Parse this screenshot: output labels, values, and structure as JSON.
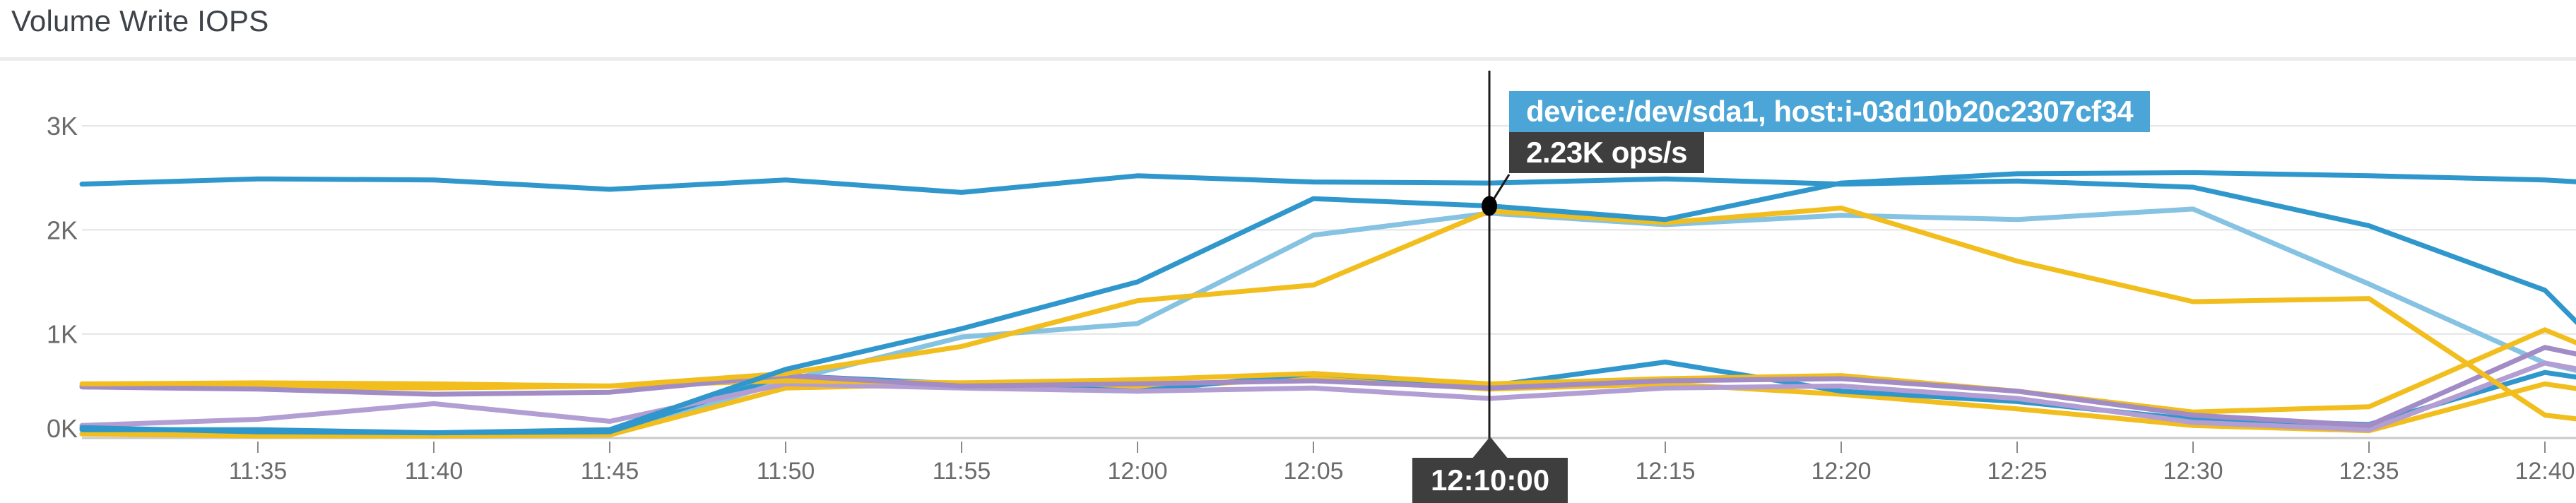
{
  "page": {
    "title": "Volume Write IOPS"
  },
  "tooltip": {
    "header": "device:/dev/sda1, host:i-03d10b20c2307cf34",
    "value": "2.23K ops/s",
    "time": "12:10:00",
    "header_bg": "#4BA5D6",
    "box_bg": "#3E3E3E"
  },
  "colors": {
    "blue": "#2F97CC",
    "light_blue": "#86C2E2",
    "gold": "#F1BE1E",
    "purple": "#A18CC6",
    "purple_light": "#B29ED3",
    "grid": "#e4e4e4",
    "axis_line": "#c9c9c9",
    "tick": "#8a8a8a",
    "crosshair": "#1a1a1a"
  },
  "chart_data": {
    "type": "line",
    "title": "Volume Write IOPS",
    "unit": "ops/s",
    "grid": true,
    "legend_position": "none",
    "ylim_kops": [
      0,
      3
    ],
    "y_ticks": [
      {
        "label": "0K",
        "value_kops": 0
      },
      {
        "label": "1K",
        "value_kops": 1
      },
      {
        "label": "2K",
        "value_kops": 2
      },
      {
        "label": "3K",
        "value_kops": 3
      }
    ],
    "x_ticks": [
      {
        "label": "11:35",
        "minute": 695,
        "hidden": false
      },
      {
        "label": "11:40",
        "minute": 700,
        "hidden": false
      },
      {
        "label": "11:45",
        "minute": 705,
        "hidden": false
      },
      {
        "label": "11:50",
        "minute": 710,
        "hidden": false
      },
      {
        "label": "11:55",
        "minute": 715,
        "hidden": false
      },
      {
        "label": "12:00",
        "minute": 720,
        "hidden": false
      },
      {
        "label": "12:05",
        "minute": 725,
        "hidden": false
      },
      {
        "label": "12:10",
        "minute": 730,
        "hidden": true
      },
      {
        "label": "12:15",
        "minute": 735,
        "hidden": false
      },
      {
        "label": "12:20",
        "minute": 740,
        "hidden": false
      },
      {
        "label": "12:25",
        "minute": 745,
        "hidden": false
      },
      {
        "label": "12:30",
        "minute": 750,
        "hidden": false
      },
      {
        "label": "12:35",
        "minute": 755,
        "hidden": false
      },
      {
        "label": "12:40",
        "minute": 760,
        "hidden": false
      }
    ],
    "times_minutes": [
      690,
      695,
      700,
      705,
      710,
      715,
      720,
      725,
      730,
      735,
      740,
      745,
      750,
      755,
      760,
      761
    ],
    "hover": {
      "time_label": "12:10:00",
      "minute": 730,
      "series_label": "device:/dev/sda1, host:i-03d10b20c2307cf34",
      "value_kops": 2.23,
      "value_label": "2.23K ops/s"
    },
    "series": [
      {
        "label": null,
        "name": "light-blue-riser",
        "color": "#86C2E2",
        "values_kops": [
          0.04,
          0.03,
          0.02,
          0.03,
          0.55,
          0.97,
          1.1,
          1.95,
          2.16,
          2.05,
          2.14,
          2.1,
          2.2,
          1.48,
          0.72,
          0.64
        ]
      },
      {
        "label": null,
        "name": "gold-low-c",
        "color": "#F1BE1E",
        "values_kops": [
          0.04,
          0.02,
          0.02,
          0.03,
          0.48,
          0.52,
          0.48,
          0.58,
          0.47,
          0.52,
          0.42,
          0.28,
          0.12,
          0.07,
          0.52,
          0.47
        ]
      },
      {
        "label": null,
        "name": "blue-low",
        "color": "#2F97CC",
        "values_kops": [
          0.08,
          0.08,
          0.05,
          0.06,
          0.6,
          0.52,
          0.45,
          0.62,
          0.5,
          0.73,
          0.45,
          0.35,
          0.18,
          0.13,
          0.63,
          0.58
        ]
      },
      {
        "label": null,
        "name": "purple-b",
        "color": "#B29ED3",
        "values_kops": [
          0.12,
          0.18,
          0.33,
          0.16,
          0.52,
          0.48,
          0.45,
          0.48,
          0.38,
          0.48,
          0.5,
          0.38,
          0.15,
          0.08,
          0.72,
          0.66
        ]
      },
      {
        "label": null,
        "name": "gold-low-b",
        "color": "#F1BE1E",
        "values_kops": [
          0.5,
          0.49,
          0.48,
          0.5,
          0.55,
          0.53,
          0.56,
          0.62,
          0.52,
          0.57,
          0.6,
          0.45,
          0.25,
          0.3,
          1.04,
          0.9
        ]
      },
      {
        "label": null,
        "name": "purple-a",
        "color": "#A18CC6",
        "values_kops": [
          0.49,
          0.47,
          0.42,
          0.44,
          0.6,
          0.5,
          0.52,
          0.55,
          0.48,
          0.55,
          0.57,
          0.45,
          0.22,
          0.12,
          0.87,
          0.8
        ]
      },
      {
        "label": null,
        "name": "gold-riser",
        "color": "#F1BE1E",
        "values_kops": [
          0.52,
          0.53,
          0.52,
          0.5,
          0.62,
          0.88,
          1.32,
          1.47,
          2.18,
          2.07,
          2.21,
          1.7,
          1.31,
          1.34,
          0.22,
          0.18
        ]
      },
      {
        "label": null,
        "name": "blue-flat-high",
        "color": "#2F97CC",
        "values_kops": [
          2.44,
          2.49,
          2.48,
          2.39,
          2.48,
          2.36,
          2.52,
          2.46,
          2.45,
          2.49,
          2.44,
          2.47,
          2.41,
          2.04,
          1.42,
          1.08
        ]
      },
      {
        "label": "device:/dev/sda1, host:i-03d10b20c2307cf34",
        "name": "blue-riser-hovered",
        "color": "#2F97CC",
        "hovered": true,
        "values_kops": [
          0.1,
          0.06,
          0.05,
          0.08,
          0.66,
          1.05,
          1.5,
          2.3,
          2.23,
          2.1,
          2.45,
          2.54,
          2.55,
          2.52,
          2.48,
          2.46
        ]
      }
    ]
  }
}
